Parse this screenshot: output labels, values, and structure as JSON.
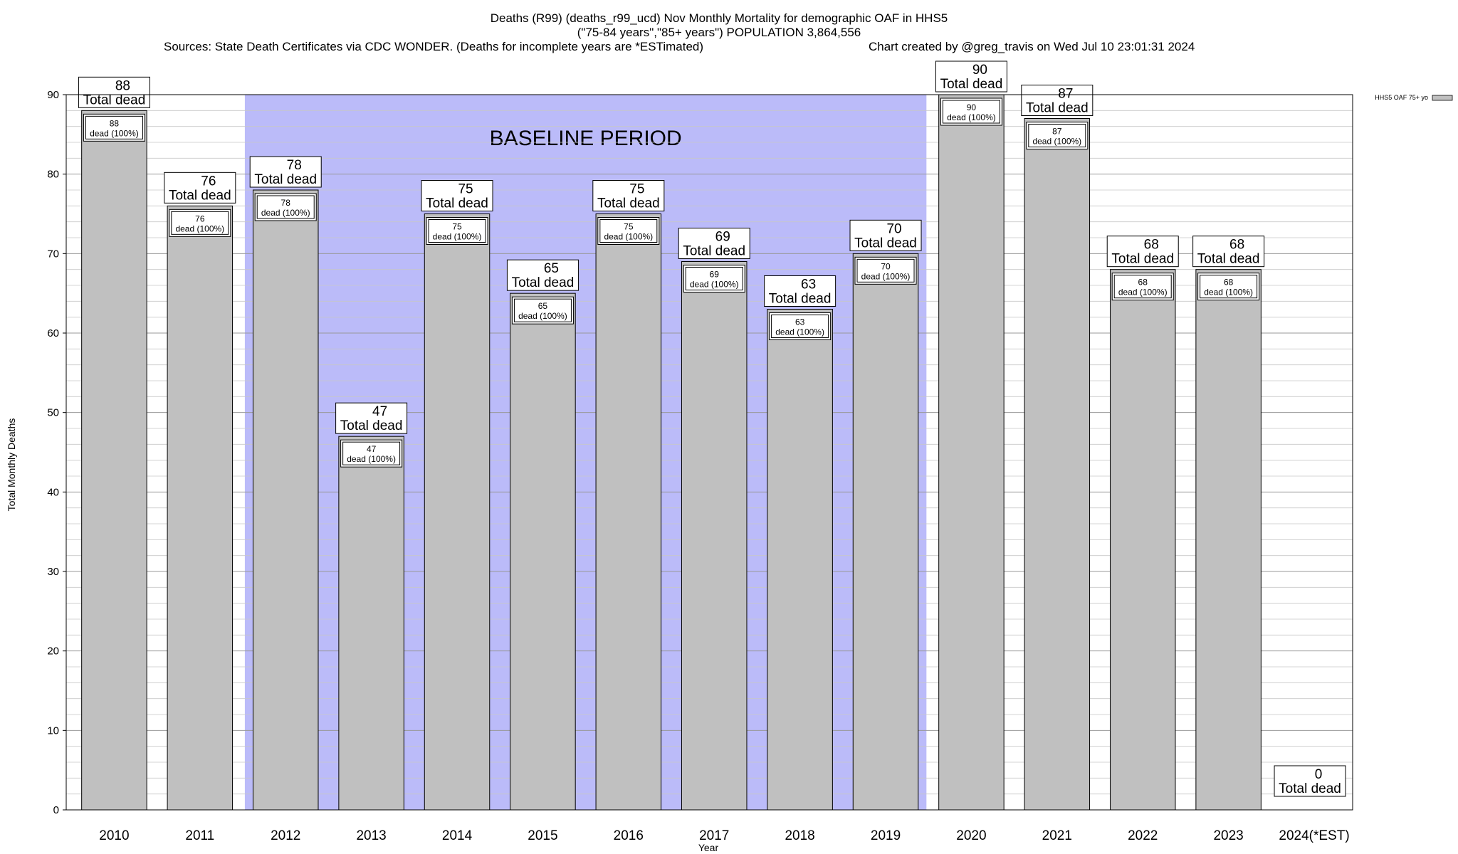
{
  "chart_data": {
    "type": "bar",
    "title_lines": [
      "Deaths (R99) (deaths_r99_ucd) Nov Monthly Mortality for demographic OAF in HHS5",
      "(\"75-84 years\",\"85+ years\") POPULATION 3,864,556",
      "Sources: State Death Certificates via CDC WONDER. (Deaths for incomplete years are *ESTimated)",
      "Chart created by @greg_travis on Wed Jul 10 23:01:31 2024"
    ],
    "xlabel": "Year",
    "ylabel": "Total Monthly Deaths",
    "ylim": [
      0,
      90
    ],
    "yticks": [
      0,
      10,
      20,
      30,
      40,
      50,
      60,
      70,
      80,
      90
    ],
    "categories": [
      "2010",
      "2011",
      "2012",
      "2013",
      "2014",
      "2015",
      "2016",
      "2017",
      "2018",
      "2019",
      "2020",
      "2021",
      "2022",
      "2023",
      "2024(*EST)"
    ],
    "series": [
      {
        "name": "HHS5 OAF 75+ yo",
        "color": "#c0c0c0",
        "values": [
          88,
          76,
          78,
          47,
          75,
          65,
          75,
          69,
          63,
          70,
          90,
          87,
          68,
          68,
          0
        ]
      }
    ],
    "total_label": "Total dead",
    "inner_label": "dead (100%)",
    "baseline": {
      "label": "BASELINE PERIOD",
      "start": "2012",
      "end": "2019",
      "color": "#bbbbf9"
    },
    "legend_position": "top-right",
    "grid": true
  }
}
